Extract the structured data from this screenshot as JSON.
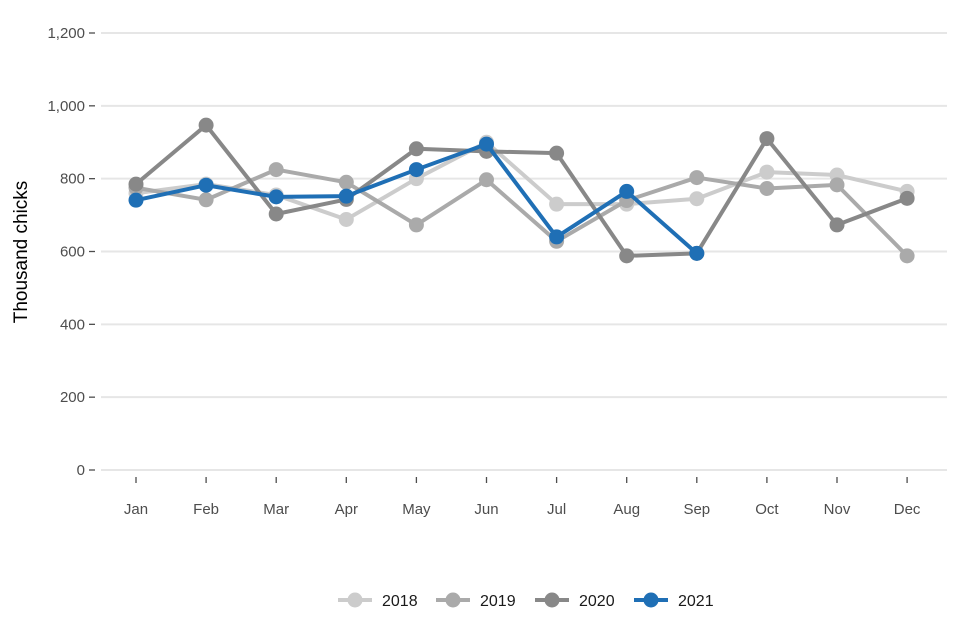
{
  "chart_data": {
    "type": "line",
    "title": "",
    "xlabel": "",
    "ylabel": "Thousand chicks",
    "ylim": [
      0,
      1200
    ],
    "yticks": [
      0,
      200,
      400,
      600,
      800,
      1000,
      1200
    ],
    "ytick_labels": [
      "0",
      "200",
      "400",
      "600",
      "800",
      "1,000",
      "1,200"
    ],
    "categories": [
      "Jan",
      "Feb",
      "Mar",
      "Apr",
      "May",
      "Jun",
      "Jul",
      "Aug",
      "Sep",
      "Oct",
      "Nov",
      "Dec"
    ],
    "grid": true,
    "legend_position": "bottom",
    "series": [
      {
        "name": "2018",
        "color": "#cccccc",
        "values": [
          760,
          785,
          755,
          688,
          800,
          900,
          730,
          730,
          745,
          818,
          810,
          765
        ]
      },
      {
        "name": "2019",
        "color": "#aaaaaa",
        "values": [
          775,
          742,
          825,
          790,
          673,
          797,
          628,
          740,
          803,
          773,
          783,
          588
        ]
      },
      {
        "name": "2020",
        "color": "#888888",
        "values": [
          785,
          947,
          703,
          743,
          882,
          875,
          870,
          588,
          595,
          910,
          673,
          746
        ]
      },
      {
        "name": "2021",
        "color": "#1f6fb5",
        "values": [
          741,
          782,
          750,
          752,
          825,
          895,
          640,
          765,
          595,
          null,
          null,
          null
        ]
      }
    ]
  }
}
